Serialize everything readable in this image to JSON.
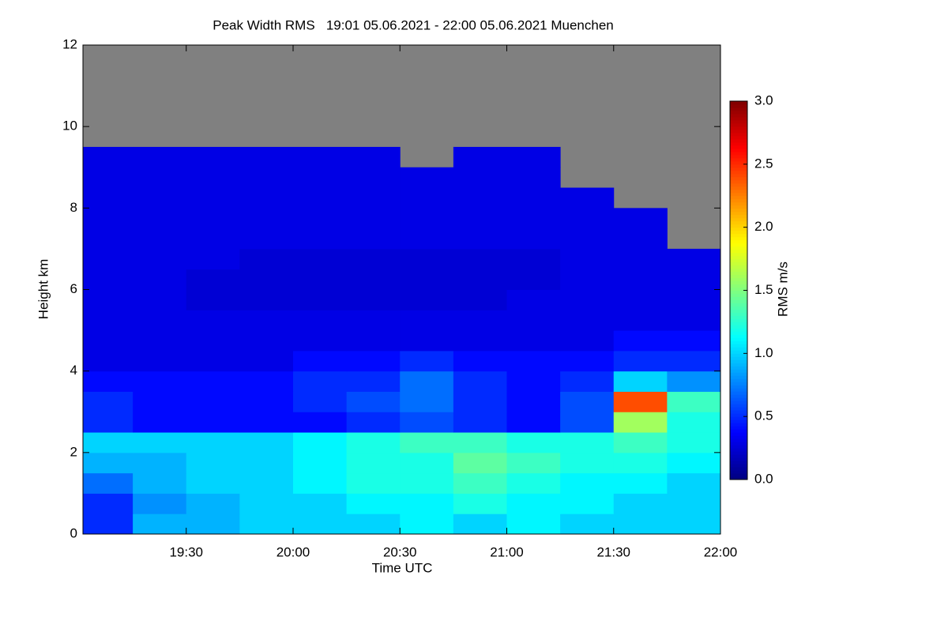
{
  "chart_data": {
    "type": "heatmap",
    "title": "Peak Width RMS   19:01 05.06.2021 - 22:00 05.06.2021 Muenchen",
    "x_label": "Time UTC",
    "y_label": "Height km",
    "colorbar_label": "RMS m/s",
    "colormap": "jet",
    "missing_color": "#808080",
    "xlim": [
      19.0167,
      22.0
    ],
    "xticks": [
      {
        "value": 19.5,
        "label": "19:30"
      },
      {
        "value": 20.0,
        "label": "20:00"
      },
      {
        "value": 20.5,
        "label": "20:30"
      },
      {
        "value": 21.0,
        "label": "21:00"
      },
      {
        "value": 21.5,
        "label": "21:30"
      },
      {
        "value": 22.0,
        "label": "22:00"
      }
    ],
    "ylim": [
      0,
      12
    ],
    "yticks": [
      0,
      2,
      4,
      6,
      8,
      10,
      12
    ],
    "zlim": [
      0,
      3
    ],
    "zticks": [
      {
        "value": 0,
        "label": "0.0"
      },
      {
        "value": 0.5,
        "label": "0.5"
      },
      {
        "value": 1.0,
        "label": "1.0"
      },
      {
        "value": 1.5,
        "label": "1.5"
      },
      {
        "value": 2.0,
        "label": "2.0"
      },
      {
        "value": 2.5,
        "label": "2.5"
      },
      {
        "value": 3.0,
        "label": "3.0"
      }
    ],
    "x": [
      19.125,
      19.375,
      19.625,
      19.875,
      20.125,
      20.375,
      20.625,
      20.875,
      21.125,
      21.375,
      21.625,
      21.875
    ],
    "y": [
      0.25,
      0.75,
      1.25,
      1.75,
      2.25,
      2.75,
      3.25,
      3.75,
      4.25,
      4.75,
      5.25,
      5.75,
      6.25,
      6.75,
      7.25,
      7.75,
      8.25,
      8.75,
      9.25,
      9.75
    ],
    "values": [
      [
        0.5,
        0.9,
        0.9,
        1.0,
        1.0,
        1.0,
        1.1,
        1.0,
        1.1,
        1.0,
        1.0,
        1.0
      ],
      [
        0.5,
        0.8,
        0.9,
        1.0,
        1.0,
        1.1,
        1.1,
        1.2,
        1.1,
        1.1,
        1.0,
        1.0
      ],
      [
        0.7,
        0.9,
        1.0,
        1.0,
        1.1,
        1.2,
        1.2,
        1.3,
        1.2,
        1.1,
        1.1,
        1.0
      ],
      [
        0.9,
        0.9,
        1.0,
        1.0,
        1.1,
        1.2,
        1.2,
        1.4,
        1.3,
        1.2,
        1.2,
        1.1
      ],
      [
        1.0,
        1.0,
        1.0,
        1.0,
        1.1,
        1.2,
        1.3,
        1.3,
        1.2,
        1.2,
        1.3,
        1.2
      ],
      [
        0.5,
        0.4,
        0.4,
        0.4,
        0.4,
        0.5,
        0.6,
        0.5,
        0.4,
        0.6,
        1.6,
        1.2
      ],
      [
        0.5,
        0.4,
        0.4,
        0.4,
        0.5,
        0.6,
        0.7,
        0.5,
        0.4,
        0.6,
        2.4,
        1.3
      ],
      [
        0.4,
        0.4,
        0.4,
        0.4,
        0.5,
        0.5,
        0.7,
        0.5,
        0.4,
        0.5,
        1.0,
        0.8
      ],
      [
        0.3,
        0.3,
        0.3,
        0.3,
        0.4,
        0.4,
        0.5,
        0.4,
        0.4,
        0.4,
        0.5,
        0.5
      ],
      [
        0.3,
        0.3,
        0.3,
        0.3,
        0.3,
        0.3,
        0.3,
        0.3,
        0.3,
        0.3,
        0.4,
        0.4
      ],
      [
        0.3,
        0.3,
        0.3,
        0.3,
        0.3,
        0.3,
        0.3,
        0.3,
        0.3,
        0.3,
        0.3,
        0.3
      ],
      [
        0.3,
        0.3,
        0.25,
        0.25,
        0.25,
        0.25,
        0.25,
        0.25,
        0.3,
        0.3,
        0.3,
        0.3
      ],
      [
        0.3,
        0.3,
        0.25,
        0.25,
        0.25,
        0.25,
        0.25,
        0.25,
        0.25,
        0.3,
        0.3,
        0.3
      ],
      [
        0.3,
        0.3,
        0.3,
        0.25,
        0.25,
        0.25,
        0.25,
        0.25,
        0.25,
        0.3,
        0.3,
        0.3
      ],
      [
        0.3,
        0.3,
        0.3,
        0.3,
        0.3,
        0.3,
        0.3,
        0.3,
        0.3,
        0.3,
        0.3,
        null
      ],
      [
        0.3,
        0.3,
        0.3,
        0.3,
        0.3,
        0.3,
        0.3,
        0.3,
        0.3,
        0.3,
        0.3,
        null
      ],
      [
        0.3,
        0.3,
        0.3,
        0.3,
        0.3,
        0.3,
        0.3,
        0.3,
        0.3,
        0.3,
        null,
        null
      ],
      [
        0.3,
        0.3,
        0.3,
        0.3,
        0.3,
        0.3,
        0.3,
        0.3,
        0.3,
        null,
        null,
        null
      ],
      [
        0.3,
        0.3,
        0.3,
        0.3,
        0.3,
        0.3,
        null,
        0.3,
        0.3,
        null,
        null,
        null
      ],
      [
        null,
        null,
        null,
        null,
        null,
        null,
        null,
        null,
        null,
        null,
        null,
        null
      ]
    ]
  }
}
